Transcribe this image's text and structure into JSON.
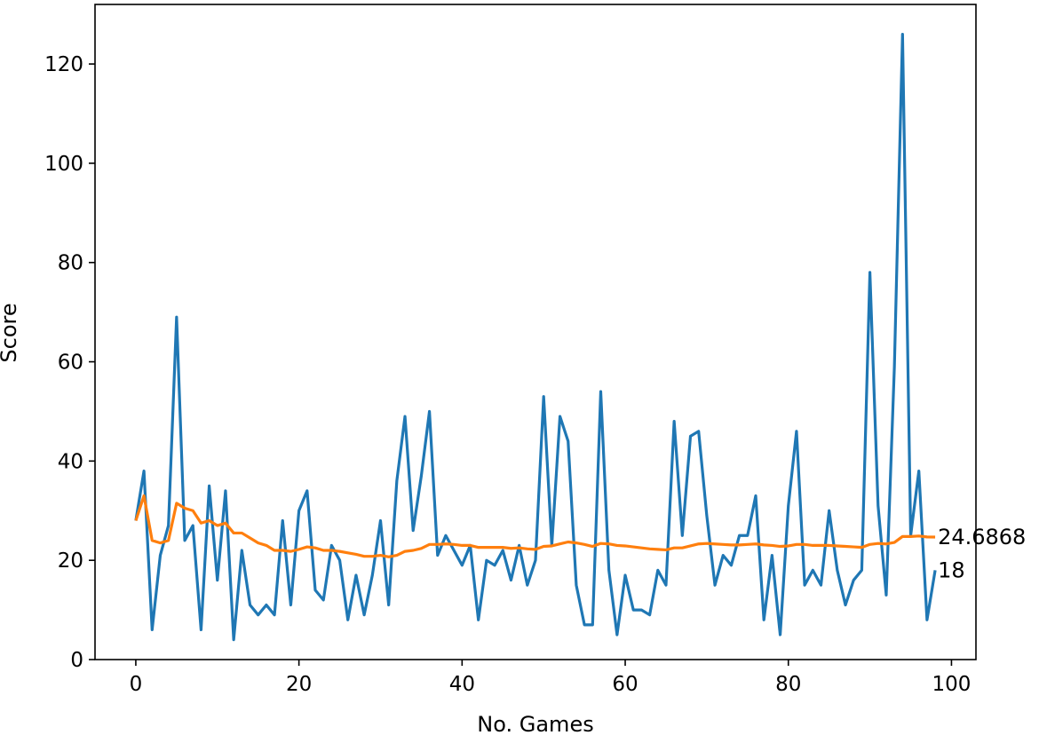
{
  "chart_data": {
    "type": "line",
    "title": "",
    "xlabel": "No. Games",
    "ylabel": "Score",
    "xlim": [
      -5,
      103
    ],
    "ylim": [
      0,
      132
    ],
    "x_ticks": [
      0,
      20,
      40,
      60,
      80,
      100
    ],
    "y_ticks": [
      0,
      20,
      40,
      60,
      80,
      100,
      120
    ],
    "grid": false,
    "legend": "none",
    "series": [
      {
        "color": "#1f77b4",
        "values": [
          28,
          38,
          6,
          21,
          27,
          69,
          24,
          27,
          6,
          35,
          16,
          34,
          4,
          22,
          11,
          9,
          11,
          9,
          28,
          11,
          30,
          34,
          14,
          12,
          23,
          20,
          8,
          17,
          9,
          17,
          28,
          11,
          36,
          49,
          26,
          37,
          50,
          21,
          25,
          22,
          19,
          23,
          8,
          20,
          19,
          22,
          16,
          23,
          15,
          20,
          53,
          23,
          49,
          44,
          15,
          7,
          7,
          54,
          18,
          5,
          17,
          10,
          10,
          9,
          18,
          15,
          48,
          25,
          45,
          46,
          29,
          15,
          21,
          19,
          25,
          25,
          33,
          8,
          21,
          5,
          31,
          46,
          15,
          18,
          15,
          30,
          18,
          11,
          16,
          18,
          78,
          31,
          13,
          59,
          126,
          25,
          38,
          8,
          18
        ]
      },
      {
        "color": "#ff7f0e",
        "values": [
          28,
          33,
          24,
          23.5,
          24,
          31.5,
          30.5,
          30,
          27.5,
          28,
          27,
          27.5,
          25.5,
          25.5,
          24.5,
          23.5,
          23,
          22,
          22,
          21.8,
          22.2,
          22.7,
          22.5,
          22,
          22,
          21.8,
          21.5,
          21.2,
          20.8,
          20.8,
          21,
          20.7,
          21,
          21.8,
          22,
          22.4,
          23.2,
          23.2,
          23.3,
          23.2,
          23,
          23,
          22.6,
          22.6,
          22.6,
          22.6,
          22.4,
          22.5,
          22.3,
          22.2,
          22.8,
          22.9,
          23.3,
          23.7,
          23.5,
          23.2,
          22.8,
          23.4,
          23.3,
          23,
          22.9,
          22.7,
          22.5,
          22.3,
          22.2,
          22.1,
          22.5,
          22.5,
          22.9,
          23.3,
          23.4,
          23.3,
          23.2,
          23.1,
          23.1,
          23.2,
          23.3,
          23.1,
          23,
          22.8,
          22.9,
          23.2,
          23.2,
          23,
          23,
          23,
          22.9,
          22.8,
          22.7,
          22.6,
          23.2,
          23.4,
          23.3,
          23.6,
          24.8,
          24.8,
          24.9,
          24.7,
          24.6868
        ]
      }
    ],
    "annotations": [
      {
        "text": "24.6868",
        "x": 98,
        "y": 24.6868
      },
      {
        "text": "18",
        "x": 98,
        "y": 18
      }
    ]
  }
}
